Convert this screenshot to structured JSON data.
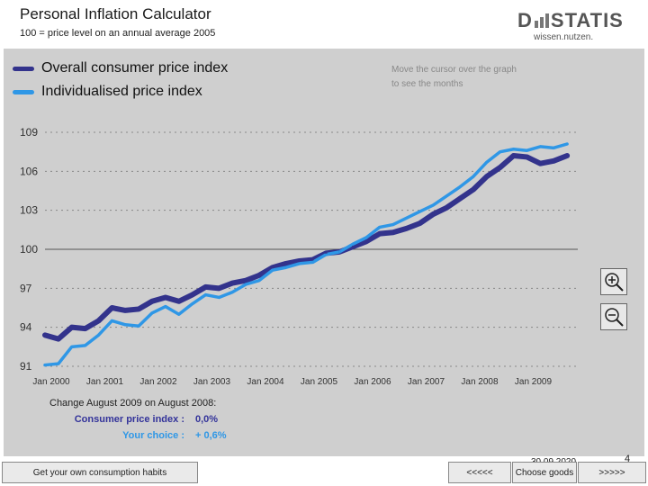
{
  "header": {
    "title": "Personal Inflation Calculator",
    "subtitle": "100 = price level on an annual average 2005",
    "logo_text_left": "D",
    "logo_text_right": "STATIS",
    "logo_tagline": "wissen.nutzen."
  },
  "legend": {
    "items": [
      {
        "label": "Overall consumer price index",
        "color": "#33338c"
      },
      {
        "label": "Individualised price index",
        "color": "#2f97e6"
      }
    ]
  },
  "hint": {
    "line1": "Move the cursor over the graph",
    "line2": "to see the months"
  },
  "chart_data": {
    "type": "line",
    "title": "Personal Inflation Calculator",
    "ylim": [
      91,
      109
    ],
    "yticks": [
      "109",
      "106",
      "103",
      "100",
      "97",
      "94",
      "91"
    ],
    "ytick_values": [
      109,
      106,
      103,
      100,
      97,
      94,
      91
    ],
    "xticks": [
      "Jan 2000",
      "Jan 2001",
      "Jan 2002",
      "Jan 2003",
      "Jan 2004",
      "Jan 2005",
      "Jan 2006",
      "Jan 2007",
      "Jan 2008",
      "Jan 2009"
    ],
    "reference_line": 100,
    "x": [
      2000.0,
      2000.25,
      2000.5,
      2000.75,
      2001.0,
      2001.25,
      2001.5,
      2001.75,
      2002.0,
      2002.25,
      2002.5,
      2002.75,
      2003.0,
      2003.25,
      2003.5,
      2003.75,
      2004.0,
      2004.25,
      2004.5,
      2004.75,
      2005.0,
      2005.25,
      2005.5,
      2005.75,
      2006.0,
      2006.25,
      2006.5,
      2006.75,
      2007.0,
      2007.25,
      2007.5,
      2007.75,
      2008.0,
      2008.25,
      2008.5,
      2008.75,
      2009.0,
      2009.25,
      2009.5,
      2009.75
    ],
    "series": [
      {
        "name": "Overall consumer price index",
        "color": "#33338c",
        "values": [
          93.4,
          93.1,
          94.0,
          93.9,
          94.5,
          95.5,
          95.3,
          95.4,
          96.0,
          96.3,
          96.0,
          96.5,
          97.1,
          97.0,
          97.4,
          97.6,
          98.0,
          98.6,
          98.9,
          99.1,
          99.2,
          99.7,
          99.8,
          100.2,
          100.6,
          101.2,
          101.3,
          101.6,
          102.0,
          102.7,
          103.2,
          103.9,
          104.6,
          105.6,
          106.3,
          107.2,
          107.1,
          106.6,
          106.8,
          107.2
        ]
      },
      {
        "name": "Individualised price index",
        "color": "#2f97e6",
        "values": [
          91.1,
          91.2,
          92.5,
          92.6,
          93.4,
          94.5,
          94.2,
          94.1,
          95.1,
          95.6,
          95.0,
          95.8,
          96.5,
          96.3,
          96.7,
          97.3,
          97.6,
          98.4,
          98.6,
          98.9,
          99.0,
          99.6,
          99.8,
          100.4,
          100.9,
          101.7,
          101.9,
          102.4,
          102.9,
          103.4,
          104.1,
          104.8,
          105.6,
          106.7,
          107.5,
          107.7,
          107.6,
          107.9,
          107.8,
          108.1
        ]
      }
    ]
  },
  "zoom": {
    "in_label": "+",
    "out_label": "−"
  },
  "change": {
    "heading": "Change August 2009 on August 2008:",
    "cpi_label": "Consumer price index :",
    "cpi_value": "0,0%",
    "cpi_color": "#33339a",
    "choice_label": "Your choice :",
    "choice_value": "+ 0,6%",
    "choice_color": "#2f97e6"
  },
  "footer": {
    "date": "30.09.2020",
    "page_number": "4",
    "btn_habits": "Get your own consumption habits",
    "btn_prev": "<<<<<",
    "btn_choose": "Choose goods",
    "btn_next": ">>>>>"
  }
}
